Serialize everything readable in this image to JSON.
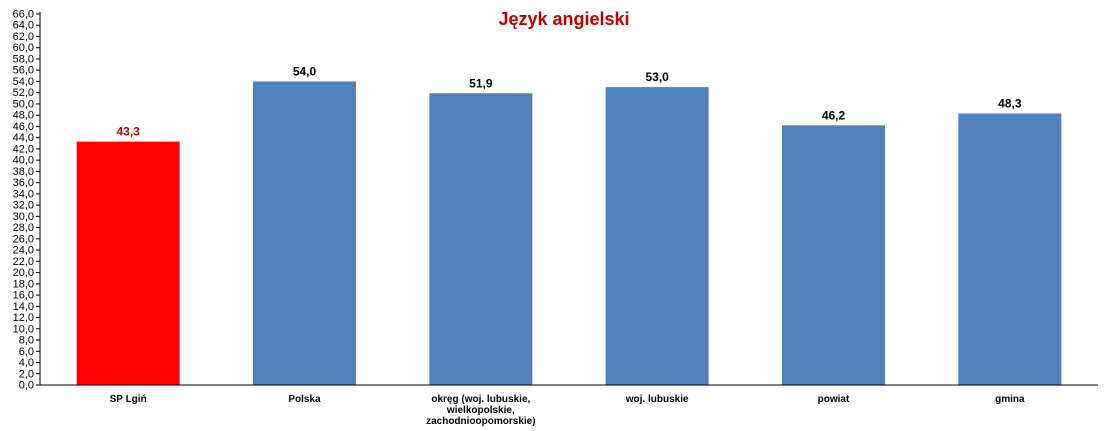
{
  "chart_data": {
    "type": "bar",
    "title": "Język angielski",
    "xlabel": "",
    "ylabel": "",
    "ylim": [
      0,
      66
    ],
    "y_tick_step": 2,
    "y_tick_format": "decimal_comma_1",
    "grid": false,
    "legend": "none",
    "categories": [
      [
        "SP Lgiń"
      ],
      [
        "Polska"
      ],
      [
        "okręg (woj. lubuskie,",
        "wielkopolskie,",
        "zachodnioopomorskie)"
      ],
      [
        "woj. lubuskie"
      ],
      [
        "powiat"
      ],
      [
        "gmina"
      ]
    ],
    "values": [
      43.3,
      54.0,
      51.9,
      53.0,
      46.2,
      48.3
    ],
    "value_labels": [
      "43,3",
      "54,0",
      "51,9",
      "53,0",
      "46,2",
      "48,3"
    ],
    "bar_colors": [
      "#FF0000",
      "#4F81BD",
      "#4F81BD",
      "#4F81BD",
      "#4F81BD",
      "#4F81BD"
    ],
    "value_label_colors": [
      "#C00000",
      "#000000",
      "#000000",
      "#000000",
      "#000000",
      "#000000"
    ],
    "title_color": "#C00000"
  }
}
